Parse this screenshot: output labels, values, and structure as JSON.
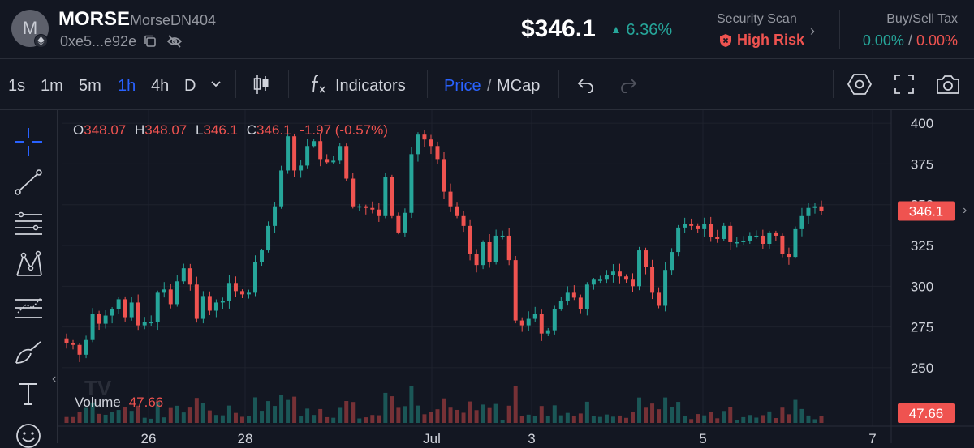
{
  "header": {
    "avatar_letter": "M",
    "symbol": "MORSE",
    "pair_name": "MorseDN404",
    "address": "0xe5...e92e",
    "price": "$346.1",
    "change": "6.36%",
    "security_label": "Security Scan",
    "security_value": "High Risk",
    "tax_label": "Buy/Sell Tax",
    "buy_tax": "0.00%",
    "tax_sep": "/",
    "sell_tax": "0.00%"
  },
  "toolbar": {
    "timeframes": [
      "1s",
      "1m",
      "5m",
      "1h",
      "4h",
      "D"
    ],
    "active_timeframe": "1h",
    "indicators_label": "Indicators",
    "price_label": "Price",
    "slash": "/",
    "mcap_label": "MCap"
  },
  "colors": {
    "up": "#26a69a",
    "down": "#ef5350",
    "accent": "#2962ff",
    "bg": "#131722"
  },
  "chart_data": {
    "type": "candlestick",
    "interval": "1h",
    "ohlc_legend": {
      "o_label": "O",
      "o": "348.07",
      "h_label": "H",
      "h": "348.07",
      "l_label": "L",
      "l": "346.1",
      "c_label": "C",
      "c": "346.1",
      "change": "-1.97 (-0.57%)"
    },
    "last_price_label": "346.1",
    "volume_label": "Volume",
    "volume_value": "47.66",
    "y_ticks": [
      400,
      375,
      350,
      325,
      300,
      275,
      250
    ],
    "ylim": [
      244,
      408
    ],
    "x_ticks": [
      "26",
      "28",
      "Jul",
      "3",
      "5",
      "7"
    ],
    "closes": [
      265,
      264,
      258,
      267,
      283,
      277,
      282,
      286,
      292,
      281,
      290,
      276,
      278,
      278,
      296,
      298,
      289,
      303,
      311,
      301,
      280,
      294,
      285,
      290,
      291,
      302,
      297,
      295,
      296,
      315,
      322,
      337,
      349,
      371,
      392,
      371,
      374,
      386,
      389,
      378,
      376,
      377,
      386,
      366,
      349,
      349,
      348,
      347,
      343,
      367,
      343,
      333,
      345,
      381,
      393,
      390,
      386,
      378,
      358,
      349,
      343,
      337,
      320,
      313,
      327,
      315,
      331,
      331,
      316,
      279,
      276,
      280,
      283,
      271,
      273,
      286,
      291,
      296,
      293,
      286,
      301,
      304,
      304,
      307,
      309,
      306,
      304,
      300,
      322,
      312,
      296,
      288,
      310,
      321,
      336,
      338,
      337,
      335,
      338,
      330,
      329,
      337,
      327,
      327,
      328,
      331,
      331,
      326,
      333,
      331,
      320,
      318,
      335,
      343,
      348,
      349,
      346
    ]
  }
}
